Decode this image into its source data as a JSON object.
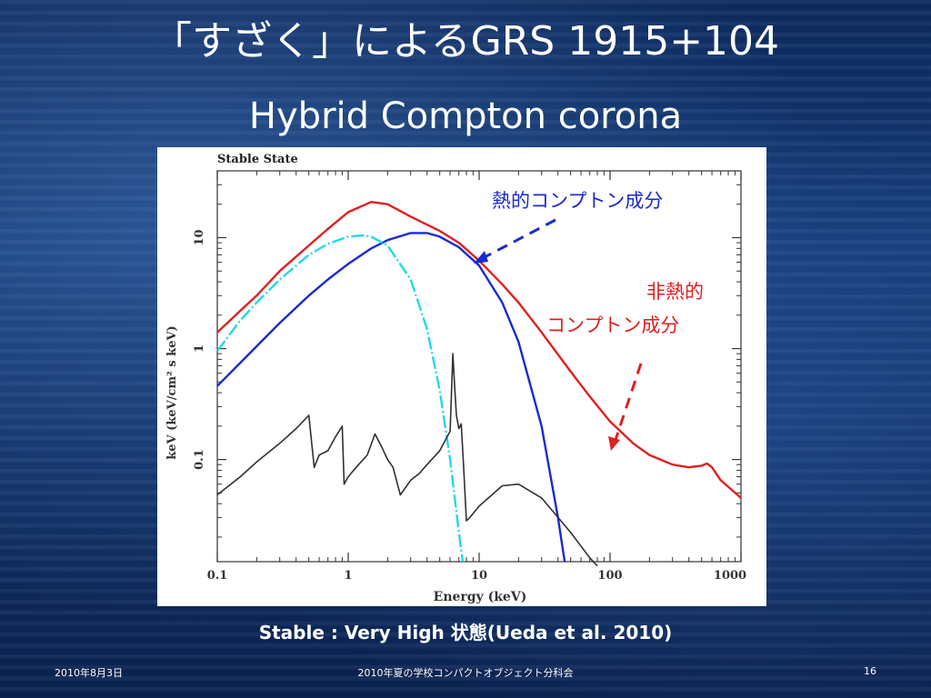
{
  "slide": {
    "title_line1": "「すざく」によるGRS 1915+104",
    "title_line2": "Hybrid Compton corona",
    "caption": "Stable : Very High 状態(Ueda et al. 2010)",
    "footer_date": "2010年8月3日",
    "footer_center": "2010年夏の学校コンパクトオブジェクト分科会",
    "footer_page": "16"
  },
  "chart_data": {
    "type": "line",
    "panel_label": "Stable State",
    "xlabel": "Energy (keV)",
    "ylabel": "keV (keV/cm² s keV)",
    "x_scale": "log",
    "y_scale": "log",
    "xlim": [
      0.1,
      1000
    ],
    "ylim": [
      0.012,
      40
    ],
    "x_ticks": [
      {
        "value": 0.1,
        "label": "0.1"
      },
      {
        "value": 1,
        "label": "1"
      },
      {
        "value": 10,
        "label": "10"
      },
      {
        "value": 100,
        "label": "100"
      },
      {
        "value": 1000,
        "label": "1000"
      }
    ],
    "y_ticks": [
      {
        "value": 0.1,
        "label": "0.1"
      },
      {
        "value": 1,
        "label": "1"
      },
      {
        "value": 10,
        "label": "10"
      }
    ],
    "annotations": {
      "thermal": "熱的コンプトン成分",
      "nonthermal_line1": "非熱的",
      "nonthermal_line2": "コンプトン成分"
    },
    "series": [
      {
        "color": "#e02020",
        "x": [
          0.1,
          0.15,
          0.2,
          0.3,
          0.5,
          0.7,
          1.0,
          1.5,
          2.0,
          3.0,
          5.0,
          7.0,
          10,
          15,
          20,
          30,
          50,
          70,
          100,
          150,
          200,
          300,
          400,
          500,
          550,
          600,
          700,
          1000
        ],
        "y": [
          1.4,
          2.2,
          3.0,
          5.0,
          8.5,
          12,
          17,
          21,
          20,
          15.5,
          11.5,
          9.0,
          6.2,
          3.8,
          2.6,
          1.4,
          0.62,
          0.37,
          0.22,
          0.14,
          0.11,
          0.09,
          0.085,
          0.088,
          0.092,
          0.085,
          0.065,
          0.045
        ]
      },
      {
        "color": "#1a2ad0",
        "x": [
          0.1,
          0.2,
          0.3,
          0.5,
          0.7,
          1.0,
          1.5,
          2.0,
          3.0,
          4.0,
          5.0,
          7.0,
          10,
          15,
          20,
          30,
          40,
          45
        ],
        "y": [
          0.46,
          1.05,
          1.7,
          3.0,
          4.2,
          5.8,
          8.0,
          9.5,
          11,
          11,
          10.2,
          8.2,
          5.6,
          2.6,
          1.15,
          0.2,
          0.03,
          0.012
        ]
      },
      {
        "color": "#22d8e8",
        "x": [
          0.1,
          0.15,
          0.2,
          0.3,
          0.5,
          0.7,
          1.0,
          1.3,
          1.5,
          2.0,
          3.0,
          4.0,
          5.0,
          6.0,
          7.0,
          7.5
        ],
        "y": [
          0.95,
          1.8,
          2.6,
          4.2,
          7.0,
          8.8,
          10.2,
          10.5,
          10.2,
          8.5,
          4.2,
          1.5,
          0.42,
          0.1,
          0.022,
          0.012
        ]
      },
      {
        "color": "#303030",
        "x": [
          0.1,
          0.15,
          0.2,
          0.3,
          0.4,
          0.5,
          0.55,
          0.6,
          0.7,
          0.8,
          0.9,
          0.93,
          1.0,
          1.2,
          1.4,
          1.6,
          1.8,
          2.0,
          2.2,
          2.5,
          3.0,
          3.5,
          4.0,
          5.0,
          6.0,
          6.3,
          6.5,
          6.7,
          7.0,
          7.3,
          7.6,
          8.0,
          8.5,
          10,
          15,
          20,
          30,
          50,
          70,
          80
        ],
        "y": [
          0.048,
          0.07,
          0.095,
          0.14,
          0.19,
          0.25,
          0.085,
          0.11,
          0.12,
          0.16,
          0.2,
          0.06,
          0.07,
          0.09,
          0.11,
          0.17,
          0.13,
          0.1,
          0.085,
          0.048,
          0.065,
          0.075,
          0.09,
          0.12,
          0.18,
          0.9,
          0.45,
          0.25,
          0.19,
          0.21,
          0.09,
          0.028,
          0.03,
          0.038,
          0.058,
          0.06,
          0.045,
          0.022,
          0.013,
          0.011
        ]
      }
    ]
  }
}
